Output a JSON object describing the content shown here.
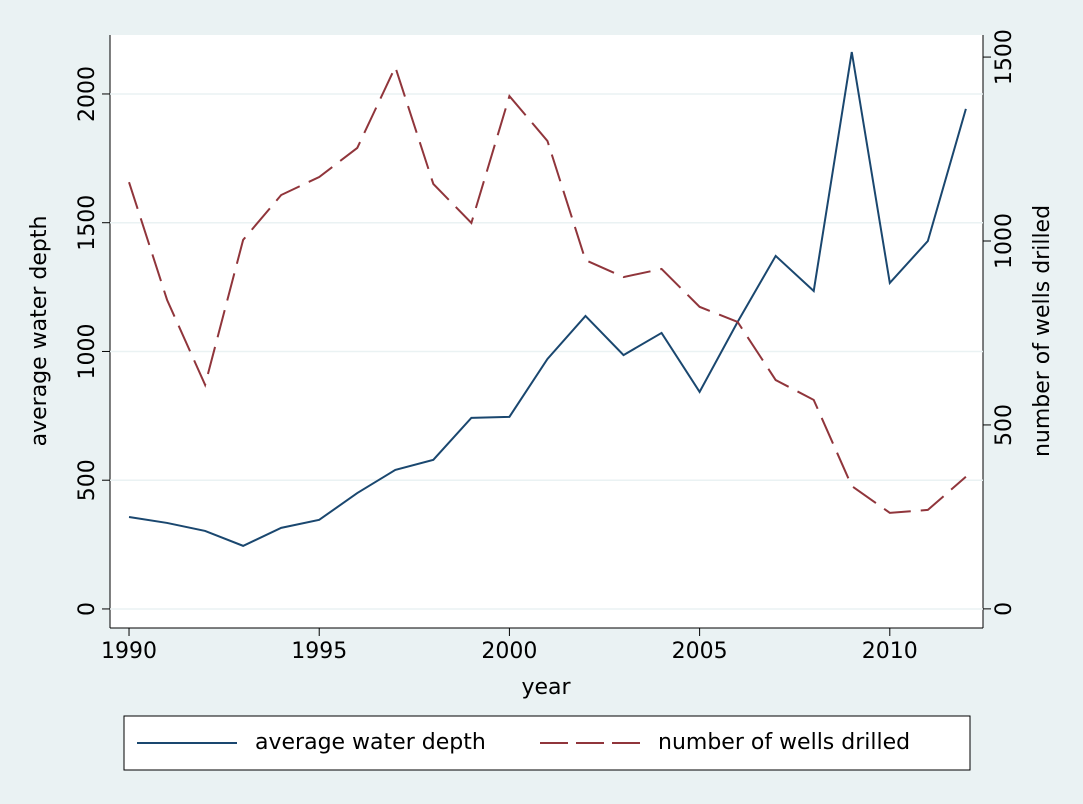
{
  "chart_data": {
    "type": "line",
    "x": [
      1990,
      1991,
      1992,
      1993,
      1994,
      1995,
      1996,
      1997,
      1998,
      1999,
      2000,
      2001,
      2002,
      2003,
      2004,
      2005,
      2006,
      2007,
      2008,
      2009,
      2010,
      2011,
      2012
    ],
    "xlim": [
      1989.5,
      2012.45
    ],
    "xticks": [
      1990,
      1995,
      2000,
      2005,
      2010
    ],
    "ylim": [
      -74,
      2229
    ],
    "yticks": [
      0,
      500,
      1000,
      1500,
      2000
    ],
    "y2lim": [
      -52,
      1560
    ],
    "y2ticks": [
      0,
      500,
      1000,
      1500
    ],
    "xlabel": "year",
    "ylabel": "average water depth",
    "y2label": "number of wells drilled",
    "grid": true,
    "legend": "bottom",
    "series": [
      {
        "name": "average water depth",
        "color": "#1a476f",
        "line_style": "solid",
        "values": [
          357,
          334,
          303,
          245,
          315,
          346,
          450,
          540,
          579,
          742,
          746,
          971,
          1138,
          986,
          1072,
          843,
          1115,
          1371,
          1235,
          2163,
          1266,
          1429,
          1942
        ]
      },
      {
        "name": "number of wells drilled",
        "color": "#90353b",
        "line_style": "dashed",
        "axis": "y2",
        "values": [
          1160,
          840,
          609,
          1003,
          1125,
          1174,
          1253,
          1473,
          1155,
          1049,
          1394,
          1272,
          948,
          902,
          924,
          821,
          780,
          622,
          568,
          334,
          261,
          269,
          359
        ]
      }
    ]
  }
}
